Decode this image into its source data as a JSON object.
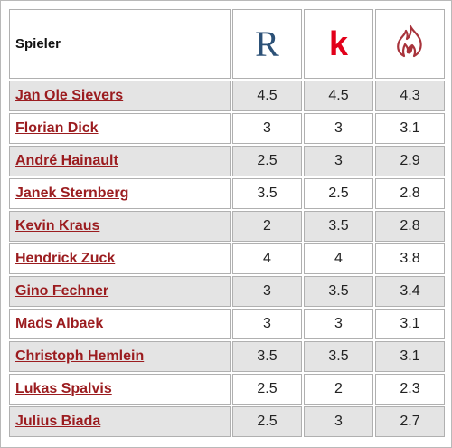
{
  "table": {
    "header": {
      "label": "Spieler",
      "columns": [
        {
          "icon": "rp-r-logo-icon",
          "letter": "R",
          "color": "#2c5177"
        },
        {
          "icon": "kicker-k-logo-icon",
          "letter": "k",
          "color": "#e2001a"
        },
        {
          "icon": "flame-logo-icon",
          "color": "#a8333b"
        }
      ]
    },
    "rows": [
      {
        "name": "Jan Ole Sievers",
        "r": "4.5",
        "k": "4.5",
        "f": "4.3"
      },
      {
        "name": "Florian Dick",
        "r": "3",
        "k": "3",
        "f": "3.1"
      },
      {
        "name": "André Hainault",
        "r": "2.5",
        "k": "3",
        "f": "2.9"
      },
      {
        "name": "Janek Sternberg",
        "r": "3.5",
        "k": "2.5",
        "f": "2.8"
      },
      {
        "name": "Kevin Kraus",
        "r": "2",
        "k": "3.5",
        "f": "2.8"
      },
      {
        "name": "Hendrick Zuck",
        "r": "4",
        "k": "4",
        "f": "3.8"
      },
      {
        "name": "Gino Fechner",
        "r": "3",
        "k": "3.5",
        "f": "3.4"
      },
      {
        "name": "Mads Albaek",
        "r": "3",
        "k": "3",
        "f": "3.1"
      },
      {
        "name": "Christoph Hemlein",
        "r": "3.5",
        "k": "3.5",
        "f": "3.1"
      },
      {
        "name": "Lukas Spalvis",
        "r": "2.5",
        "k": "2",
        "f": "2.3"
      },
      {
        "name": "Julius Biada",
        "r": "2.5",
        "k": "3",
        "f": "2.7"
      }
    ]
  }
}
